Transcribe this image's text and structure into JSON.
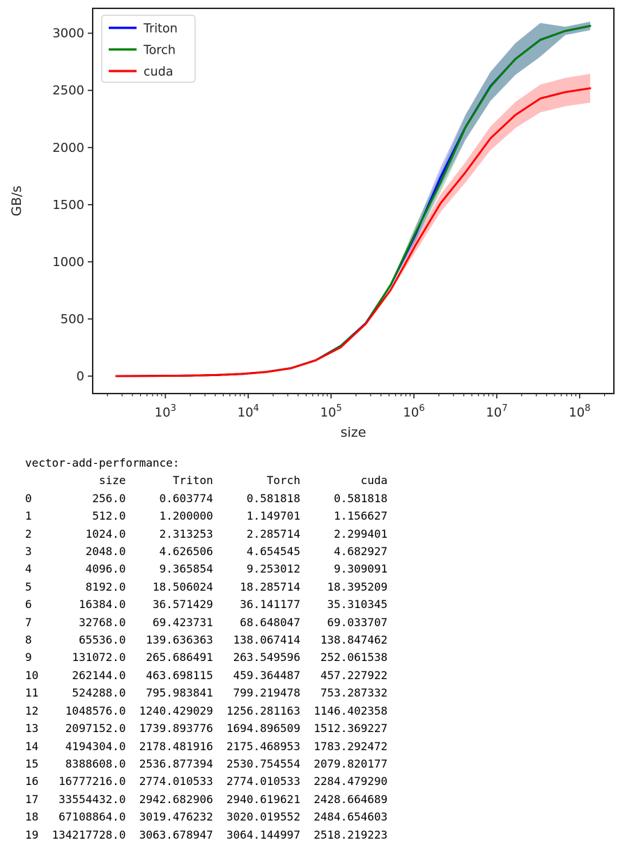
{
  "chart_data": {
    "type": "line",
    "title": "",
    "xlabel": "size",
    "ylabel": "GB/s",
    "x_scale": "log",
    "grid": false,
    "legend_position": "upper left",
    "x_tick_labels": [
      "10³",
      "10⁴",
      "10⁵",
      "10⁶",
      "10⁷",
      "10⁸"
    ],
    "x_tick_exponents": [
      3,
      4,
      5,
      6,
      7,
      8
    ],
    "y_ticks": [
      0,
      500,
      1000,
      1500,
      2000,
      2500,
      3000
    ],
    "ylim_ticks": [
      0,
      3000
    ],
    "x": [
      256,
      512,
      1024,
      2048,
      4096,
      8192,
      16384,
      32768,
      65536,
      131072,
      262144,
      524288,
      1048576,
      2097152,
      4194304,
      8388608,
      16777216,
      33554432,
      67108864,
      134217728
    ],
    "series": [
      {
        "name": "Triton",
        "color": "#0000ff",
        "values": [
          0.603774,
          1.2,
          2.313253,
          4.626506,
          9.365854,
          18.506024,
          36.571429,
          69.423731,
          139.636363,
          265.686491,
          463.698115,
          795.983841,
          1240.429029,
          1739.893776,
          2178.481916,
          2536.877394,
          2774.010533,
          2942.682906,
          3019.476232,
          3063.678947
        ]
      },
      {
        "name": "Torch",
        "color": "#008000",
        "values": [
          0.581818,
          1.149701,
          2.285714,
          4.654545,
          9.253012,
          18.285714,
          36.141177,
          68.648047,
          138.067414,
          263.549596,
          459.364487,
          799.219478,
          1256.281163,
          1694.896509,
          2175.468953,
          2530.754554,
          2774.010533,
          2940.619621,
          3020.019552,
          3064.144997
        ]
      },
      {
        "name": "cuda",
        "color": "#ff0000",
        "values": [
          0.581818,
          1.156627,
          2.299401,
          4.682927,
          9.309091,
          18.395209,
          35.310345,
          69.033707,
          138.847462,
          252.061538,
          457.227922,
          753.287332,
          1146.402358,
          1512.369227,
          1783.292472,
          2079.820177,
          2284.47929,
          2428.664689,
          2484.654603,
          2518.219223
        ]
      }
    ],
    "legend": [
      {
        "label": "Triton",
        "color": "#0000ff"
      },
      {
        "label": "Torch",
        "color": "#008000"
      },
      {
        "label": "cuda",
        "color": "#ff0000"
      }
    ]
  },
  "table": {
    "title": "vector-add-performance:",
    "columns": [
      "size",
      "Triton",
      "Torch",
      "cuda"
    ],
    "rows": [
      [
        "256.0",
        "0.603774",
        "0.581818",
        "0.581818"
      ],
      [
        "512.0",
        "1.200000",
        "1.149701",
        "1.156627"
      ],
      [
        "1024.0",
        "2.313253",
        "2.285714",
        "2.299401"
      ],
      [
        "2048.0",
        "4.626506",
        "4.654545",
        "4.682927"
      ],
      [
        "4096.0",
        "9.365854",
        "9.253012",
        "9.309091"
      ],
      [
        "8192.0",
        "18.506024",
        "18.285714",
        "18.395209"
      ],
      [
        "16384.0",
        "36.571429",
        "36.141177",
        "35.310345"
      ],
      [
        "32768.0",
        "69.423731",
        "68.648047",
        "69.033707"
      ],
      [
        "65536.0",
        "139.636363",
        "138.067414",
        "138.847462"
      ],
      [
        "131072.0",
        "265.686491",
        "263.549596",
        "252.061538"
      ],
      [
        "262144.0",
        "463.698115",
        "459.364487",
        "457.227922"
      ],
      [
        "524288.0",
        "795.983841",
        "799.219478",
        "753.287332"
      ],
      [
        "1048576.0",
        "1240.429029",
        "1256.281163",
        "1146.402358"
      ],
      [
        "2097152.0",
        "1739.893776",
        "1694.896509",
        "1512.369227"
      ],
      [
        "4194304.0",
        "2178.481916",
        "2175.468953",
        "1783.292472"
      ],
      [
        "8388608.0",
        "2536.877394",
        "2530.754554",
        "2079.820177"
      ],
      [
        "16777216.0",
        "2774.010533",
        "2774.010533",
        "2284.479290"
      ],
      [
        "33554432.0",
        "2942.682906",
        "2940.619621",
        "2428.664689"
      ],
      [
        "67108864.0",
        "3019.476232",
        "3020.019552",
        "2484.654603"
      ],
      [
        "134217728.0",
        "3063.678947",
        "3064.144997",
        "2518.219223"
      ]
    ]
  },
  "colors": {
    "spine": "#262626",
    "legend_border": "#cccccc",
    "text": "#262626"
  }
}
